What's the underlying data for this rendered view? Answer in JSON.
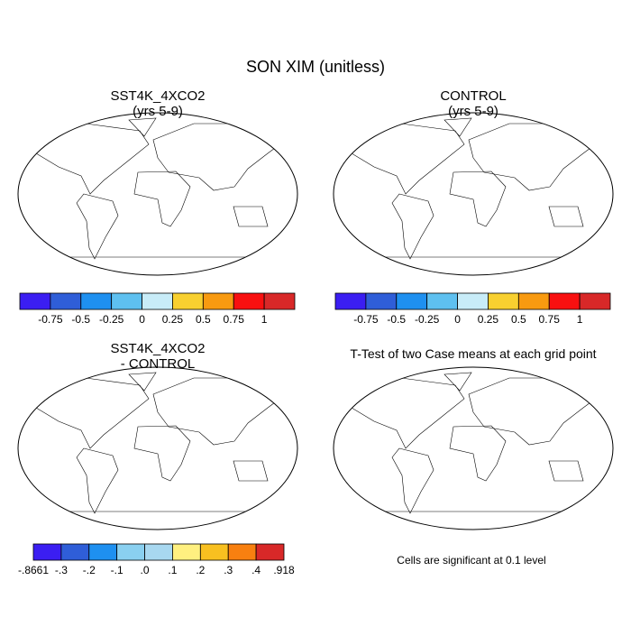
{
  "header": {
    "title": "SON XIM (unitless)"
  },
  "panels": [
    {
      "title": "SST4K_4XCO2",
      "subtitle": "(yrs 5-9)",
      "colorbar": {
        "colors": [
          "#3b1ef2",
          "#2f5ed8",
          "#1e90f0",
          "#5ec0f0",
          "#c8ecf8",
          "#f8d030",
          "#f89a10",
          "#f81010",
          "#d82828"
        ],
        "labels": [
          "-0.75",
          "-0.5",
          "-0.25",
          "0",
          "0.25",
          "0.5",
          "0.75",
          "1"
        ]
      }
    },
    {
      "title": "CONTROL",
      "subtitle": "(yrs 5-9)",
      "colorbar": {
        "colors": [
          "#3b1ef2",
          "#2f5ed8",
          "#1e90f0",
          "#5ec0f0",
          "#c8ecf8",
          "#f8d030",
          "#f89a10",
          "#f81010",
          "#d82828"
        ],
        "labels": [
          "-0.75",
          "-0.5",
          "-0.25",
          "0",
          "0.25",
          "0.5",
          "0.75",
          "1"
        ]
      }
    },
    {
      "title": "SST4K_4XCO2",
      "subtitle": "- CONTROL",
      "colorbar": {
        "colors": [
          "#3b1ef2",
          "#2f5ed8",
          "#1e90f0",
          "#8ad0f0",
          "#a8d8f0",
          "#fff080",
          "#f8c020",
          "#f88010",
          "#d82828"
        ],
        "labels": [
          "-.8661",
          "-.3",
          "-.2",
          "-.1",
          ".0",
          ".1",
          ".2",
          ".3",
          ".4",
          ".918"
        ]
      }
    },
    {
      "title": "T-Test of two Case means at each grid point",
      "footnote": "Cells are significant at 0.1 level"
    }
  ]
}
